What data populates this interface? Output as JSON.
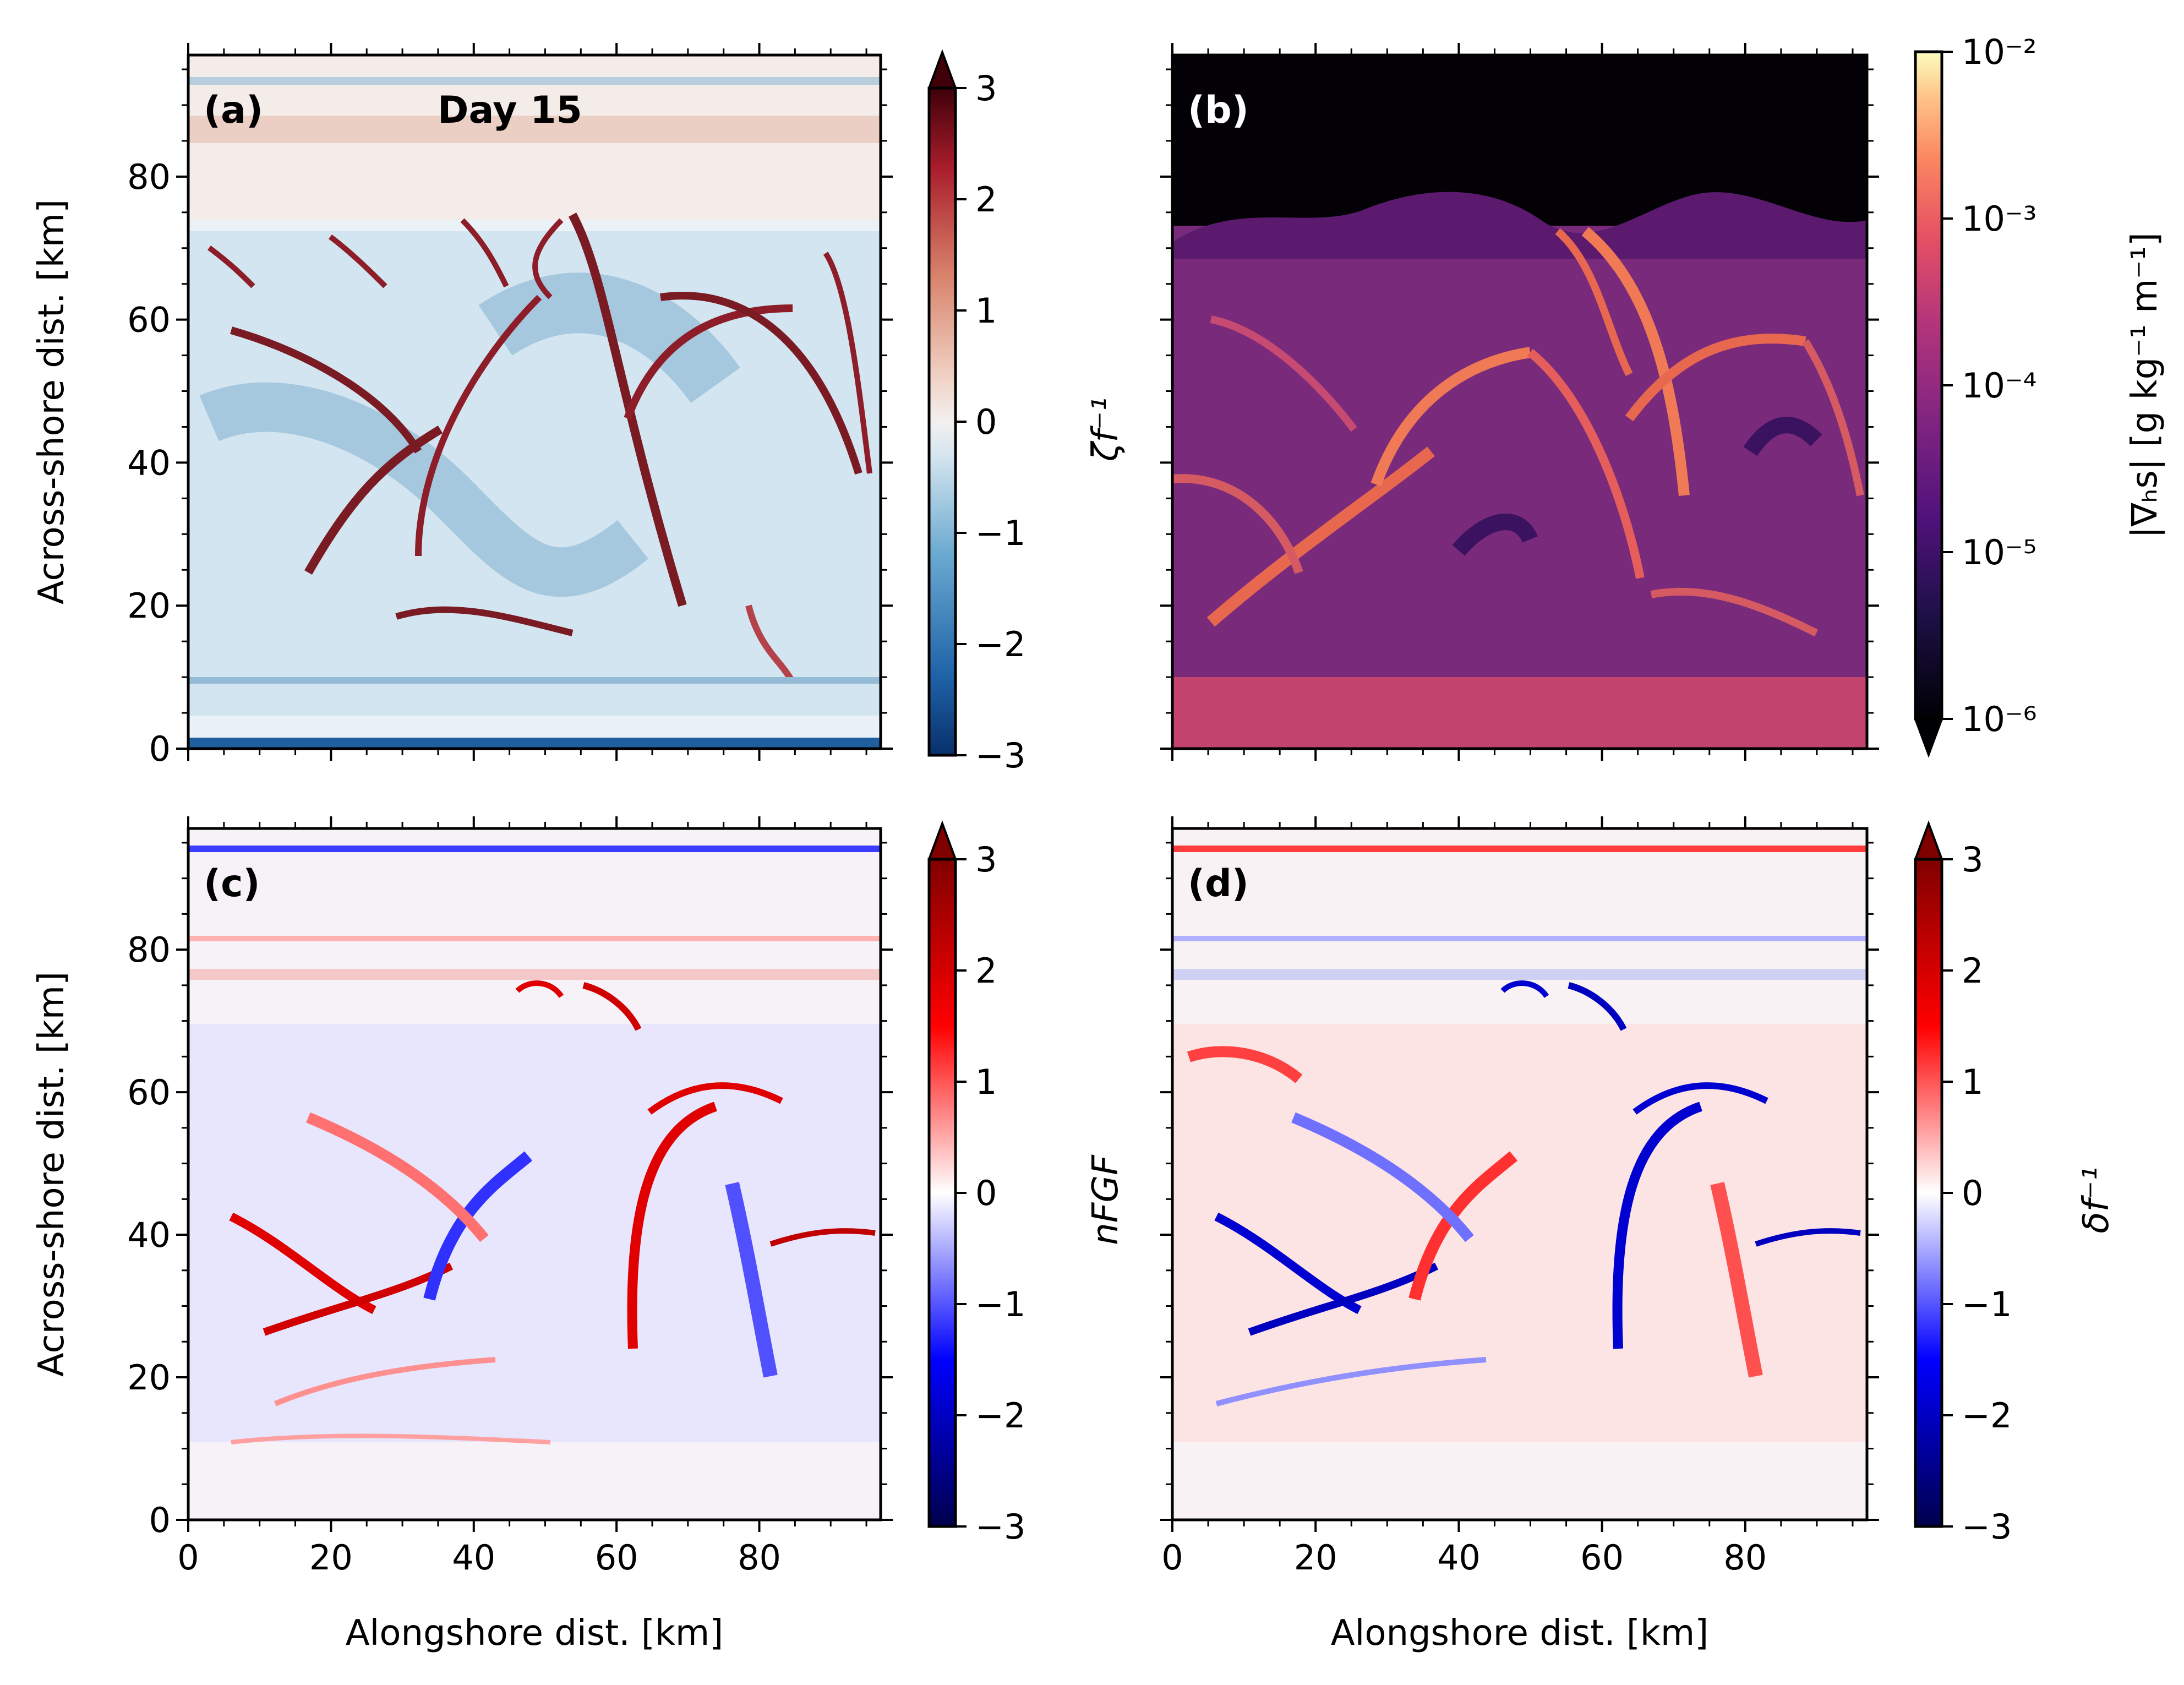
{
  "figure": {
    "xlabel": "Alongshore dist. [km]",
    "ylabel": "Across-shore dist. [km]"
  },
  "chart_data": [
    {
      "type": "heatmap",
      "panel": "(a)",
      "annotation": "Day 15",
      "colormap": "diverging red-white-blue (RdBu_r)",
      "colorbar_label": "ζf⁻¹",
      "colorbar_ticks": [
        "−3",
        "−2",
        "−1",
        "0",
        "1",
        "2",
        "3"
      ],
      "clim": [
        -3,
        3
      ],
      "extend": "both",
      "x_ticks": [
        "0",
        "20",
        "40",
        "60",
        "80"
      ],
      "y_ticks": [
        "0",
        "20",
        "40",
        "60",
        "80"
      ],
      "xlim": [
        0,
        97
      ],
      "ylim": [
        0,
        97
      ],
      "ylabel": "Across-shore dist. [km]"
    },
    {
      "type": "heatmap",
      "panel": "(b)",
      "colormap": "magma (log scale)",
      "colorbar_label": "|∇ₕs| [g kg⁻¹ m⁻¹]",
      "colorbar_ticks": [
        "10⁻⁶",
        "10⁻⁵",
        "10⁻⁴",
        "10⁻³",
        "10⁻²"
      ],
      "clim": [
        1e-06,
        0.01
      ],
      "scale": "log",
      "extend": "min",
      "xlim": [
        0,
        97
      ],
      "ylim": [
        0,
        97
      ]
    },
    {
      "type": "heatmap",
      "panel": "(c)",
      "colormap": "diverging seismic",
      "colorbar_label": "nFGF",
      "colorbar_ticks": [
        "−3",
        "−2",
        "−1",
        "0",
        "1",
        "2",
        "3"
      ],
      "clim": [
        -3,
        3
      ],
      "extend": "max",
      "x_ticks": [
        "0",
        "20",
        "40",
        "60",
        "80"
      ],
      "y_ticks": [
        "0",
        "20",
        "40",
        "60",
        "80"
      ],
      "xlim": [
        0,
        97
      ],
      "ylim": [
        0,
        97
      ],
      "xlabel": "Alongshore dist. [km]",
      "ylabel": "Across-shore dist. [km]"
    },
    {
      "type": "heatmap",
      "panel": "(d)",
      "colormap": "diverging seismic",
      "colorbar_label": "δf⁻¹",
      "colorbar_ticks": [
        "−3",
        "−2",
        "−1",
        "0",
        "1",
        "2",
        "3"
      ],
      "clim": [
        -3,
        3
      ],
      "extend": "max",
      "x_ticks": [
        "0",
        "20",
        "40",
        "60",
        "80"
      ],
      "xlim": [
        0,
        97
      ],
      "ylim": [
        0,
        97
      ],
      "xlabel": "Alongshore dist. [km]"
    }
  ]
}
